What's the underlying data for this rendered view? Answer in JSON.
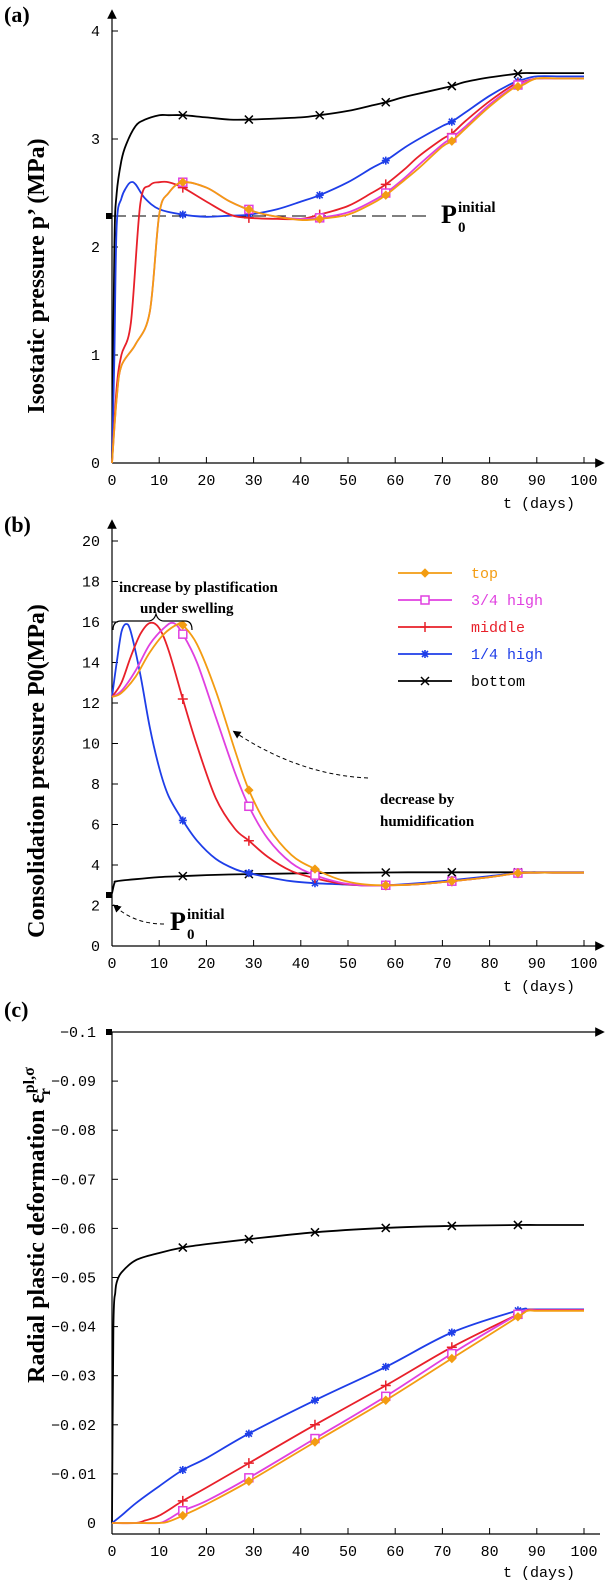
{
  "colors": {
    "top": "#f39c12",
    "three_quarter": "#e040e0",
    "middle": "#e8202a",
    "quarter": "#1e3ee8",
    "bottom": "#000000"
  },
  "chart_data": [
    {
      "panel": "(a)",
      "type": "line",
      "ylabel": "Isostatic pressure p’ (MPa)",
      "xlabel": "t (days)",
      "xlim": [
        0,
        100
      ],
      "ylim": [
        0,
        4
      ],
      "xticks": [
        "0",
        "10",
        "20",
        "30",
        "40",
        "50",
        "60",
        "70",
        "80",
        "90",
        "100"
      ],
      "yticks": [
        "0",
        "1",
        "2",
        "3",
        "4"
      ],
      "reference": {
        "label_main": "P",
        "label_sub": "0",
        "label_sup": "initial",
        "value": 2.3
      },
      "series": [
        {
          "key": "top",
          "x": [
            0,
            1,
            2,
            5,
            8,
            10,
            12,
            15,
            20,
            25,
            30,
            35,
            40,
            44,
            50,
            55,
            58,
            62,
            65,
            70,
            72,
            75,
            80,
            85,
            87,
            90,
            95,
            100
          ],
          "y": [
            0,
            0.6,
            0.9,
            1.1,
            1.4,
            2.3,
            2.5,
            2.6,
            2.55,
            2.42,
            2.33,
            2.28,
            2.25,
            2.26,
            2.3,
            2.4,
            2.48,
            2.62,
            2.73,
            2.93,
            2.98,
            3.1,
            3.3,
            3.47,
            3.5,
            3.56,
            3.56,
            3.56
          ]
        },
        {
          "key": "three_quarter",
          "x": [
            0,
            1,
            2,
            5,
            8,
            10,
            12,
            15,
            20,
            25,
            30,
            35,
            40,
            44,
            50,
            55,
            58,
            62,
            65,
            70,
            72,
            75,
            80,
            85,
            87,
            90,
            95,
            100
          ],
          "y": [
            0,
            0.6,
            0.9,
            1.1,
            1.4,
            2.3,
            2.5,
            2.6,
            2.55,
            2.42,
            2.33,
            2.28,
            2.26,
            2.27,
            2.32,
            2.42,
            2.5,
            2.64,
            2.76,
            2.95,
            3.01,
            3.12,
            3.32,
            3.48,
            3.52,
            3.56,
            3.56,
            3.56
          ]
        },
        {
          "key": "middle",
          "x": [
            0,
            1,
            2,
            4,
            6,
            8,
            10,
            12,
            15,
            20,
            25,
            29,
            35,
            40,
            44,
            50,
            55,
            58,
            62,
            65,
            70,
            72,
            75,
            80,
            85,
            87,
            90,
            95,
            100
          ],
          "y": [
            0,
            0.7,
            1.0,
            1.3,
            2.4,
            2.57,
            2.6,
            2.6,
            2.55,
            2.42,
            2.3,
            2.27,
            2.26,
            2.26,
            2.3,
            2.38,
            2.5,
            2.58,
            2.72,
            2.84,
            3.0,
            3.05,
            3.17,
            3.35,
            3.5,
            3.53,
            3.56,
            3.56,
            3.56
          ]
        },
        {
          "key": "quarter",
          "x": [
            0,
            0.5,
            1,
            2,
            3,
            4,
            5,
            7,
            10,
            15,
            20,
            25,
            29,
            35,
            40,
            44,
            50,
            55,
            58,
            62,
            65,
            70,
            72,
            75,
            80,
            85,
            87,
            90,
            95,
            100
          ],
          "y": [
            0,
            1.0,
            2.2,
            2.45,
            2.55,
            2.6,
            2.58,
            2.45,
            2.35,
            2.3,
            2.28,
            2.29,
            2.3,
            2.35,
            2.42,
            2.48,
            2.6,
            2.73,
            2.8,
            2.92,
            3.0,
            3.12,
            3.16,
            3.25,
            3.4,
            3.52,
            3.55,
            3.58,
            3.58,
            3.58
          ]
        },
        {
          "key": "bottom",
          "x": [
            0,
            0.5,
            1,
            2,
            3,
            5,
            7,
            10,
            12,
            15,
            20,
            25,
            29,
            35,
            40,
            44,
            50,
            55,
            58,
            62,
            65,
            70,
            72,
            75,
            80,
            85,
            87,
            90,
            95,
            100
          ],
          "y": [
            0,
            2.0,
            2.5,
            2.8,
            2.95,
            3.12,
            3.18,
            3.22,
            3.22,
            3.22,
            3.2,
            3.18,
            3.18,
            3.19,
            3.2,
            3.22,
            3.26,
            3.31,
            3.34,
            3.39,
            3.42,
            3.47,
            3.49,
            3.53,
            3.57,
            3.6,
            3.61,
            3.61,
            3.61,
            3.61
          ]
        }
      ]
    },
    {
      "panel": "(b)",
      "type": "line",
      "ylabel": "Consolidation pressure P0(MPa)",
      "xlabel": "t (days)",
      "xlim": [
        0,
        100
      ],
      "ylim": [
        0,
        20
      ],
      "xticks": [
        "0",
        "10",
        "20",
        "30",
        "40",
        "50",
        "60",
        "70",
        "80",
        "90",
        "100"
      ],
      "yticks": [
        "0",
        "2",
        "4",
        "6",
        "8",
        "10",
        "12",
        "14",
        "16",
        "18",
        "20"
      ],
      "annotations": {
        "increase_line1": "increase by plastification",
        "increase_line2": "under swelling",
        "decrease_line1": "decrease by",
        "decrease_line2": "humidification",
        "p0_main": "P",
        "p0_sub": "0",
        "p0_sup": "initial"
      },
      "legend": [
        {
          "key": "top",
          "label": "top"
        },
        {
          "key": "three_quarter",
          "label": "3/4 high"
        },
        {
          "key": "middle",
          "label": "middle"
        },
        {
          "key": "quarter",
          "label": "1/4 high"
        },
        {
          "key": "bottom",
          "label": "bottom"
        }
      ],
      "series": [
        {
          "key": "top",
          "x": [
            0,
            2,
            5,
            8,
            11,
            14,
            15,
            18,
            22,
            26,
            29,
            33,
            38,
            43,
            48,
            53,
            58,
            65,
            72,
            80,
            86,
            90,
            95,
            100
          ],
          "y": [
            12.3,
            12.5,
            13.3,
            14.5,
            15.4,
            15.9,
            15.85,
            14.9,
            12.6,
            9.7,
            7.7,
            5.9,
            4.5,
            3.8,
            3.3,
            3.05,
            3.0,
            3.05,
            3.2,
            3.4,
            3.6,
            3.62,
            3.62,
            3.62
          ]
        },
        {
          "key": "three_quarter",
          "x": [
            0,
            2,
            5,
            8,
            11,
            13,
            15,
            18,
            22,
            26,
            29,
            33,
            38,
            43,
            48,
            53,
            58,
            65,
            72,
            80,
            86,
            90,
            95,
            100
          ],
          "y": [
            12.3,
            12.6,
            13.6,
            14.9,
            15.7,
            15.95,
            15.4,
            14.0,
            11.3,
            8.6,
            6.9,
            5.3,
            4.1,
            3.5,
            3.15,
            3.0,
            3.0,
            3.05,
            3.2,
            3.4,
            3.6,
            3.62,
            3.62,
            3.62
          ]
        },
        {
          "key": "middle",
          "x": [
            0,
            2,
            4,
            6,
            8,
            10,
            12,
            15,
            18,
            22,
            26,
            29,
            33,
            38,
            43,
            48,
            53,
            58,
            65,
            72,
            80,
            86,
            90,
            95,
            100
          ],
          "y": [
            12.3,
            13.0,
            14.3,
            15.4,
            15.95,
            15.7,
            14.6,
            12.2,
            9.9,
            7.3,
            5.8,
            5.2,
            4.4,
            3.7,
            3.35,
            3.1,
            3.0,
            3.0,
            3.05,
            3.2,
            3.4,
            3.6,
            3.62,
            3.62,
            3.62
          ]
        },
        {
          "key": "quarter",
          "x": [
            0,
            1,
            2,
            3,
            4,
            6,
            8,
            10,
            12,
            15,
            18,
            22,
            26,
            29,
            33,
            38,
            43,
            48,
            53,
            58,
            65,
            72,
            80,
            86,
            90,
            95,
            100
          ],
          "y": [
            12.3,
            14.0,
            15.5,
            15.9,
            15.5,
            13.4,
            10.8,
            8.8,
            7.4,
            6.2,
            5.2,
            4.3,
            3.8,
            3.6,
            3.4,
            3.2,
            3.1,
            3.05,
            3.0,
            3.0,
            3.1,
            3.25,
            3.45,
            3.6,
            3.62,
            3.62,
            3.62
          ]
        },
        {
          "key": "bottom",
          "x": [
            0,
            0.5,
            1,
            5,
            10,
            15,
            20,
            29,
            35,
            43,
            50,
            58,
            65,
            72,
            80,
            86,
            90,
            95,
            100
          ],
          "y": [
            2.6,
            3.1,
            3.2,
            3.3,
            3.4,
            3.45,
            3.5,
            3.55,
            3.57,
            3.6,
            3.62,
            3.63,
            3.64,
            3.64,
            3.64,
            3.64,
            3.64,
            3.64,
            3.64
          ]
        }
      ]
    },
    {
      "panel": "(c)",
      "type": "line",
      "ylabel": "Radial plastic deformation ε",
      "ylabel_sup": "pl,σ",
      "ylabel_sub": "r",
      "xlabel": "t (days)",
      "xlim": [
        0,
        100
      ],
      "ylim": [
        -0.1,
        0
      ],
      "xticks": [
        "0",
        "10",
        "20",
        "30",
        "40",
        "50",
        "60",
        "70",
        "80",
        "90",
        "100"
      ],
      "yticks": [
        "0",
        "−0.01",
        "−0.02",
        "−0.03",
        "−0.04",
        "−0.05",
        "−0.06",
        "−0.07",
        "−0.08",
        "−0.09",
        "−0.1"
      ],
      "series": [
        {
          "key": "top",
          "x": [
            0,
            5,
            10,
            12,
            15,
            20,
            29,
            43,
            58,
            72,
            86,
            88,
            90,
            95,
            100
          ],
          "y": [
            0,
            0,
            0,
            -0.0003,
            -0.0015,
            -0.0038,
            -0.0085,
            -0.0165,
            -0.025,
            -0.0335,
            -0.042,
            -0.0432,
            -0.0432,
            -0.0432,
            -0.0432
          ]
        },
        {
          "key": "three_quarter",
          "x": [
            0,
            5,
            10,
            12,
            15,
            20,
            29,
            43,
            58,
            72,
            86,
            88,
            90,
            95,
            100
          ],
          "y": [
            0,
            0,
            0,
            -0.0008,
            -0.0025,
            -0.0045,
            -0.0092,
            -0.0172,
            -0.0258,
            -0.0345,
            -0.0425,
            -0.0433,
            -0.0433,
            -0.0433,
            -0.0433
          ]
        },
        {
          "key": "middle",
          "x": [
            0,
            5,
            7,
            10,
            15,
            20,
            29,
            43,
            58,
            72,
            86,
            88,
            90,
            95,
            100
          ],
          "y": [
            0,
            0,
            -0.0005,
            -0.0015,
            -0.0045,
            -0.0072,
            -0.0122,
            -0.02,
            -0.028,
            -0.0358,
            -0.0425,
            -0.0434,
            -0.0434,
            -0.0434,
            -0.0434
          ]
        },
        {
          "key": "quarter",
          "x": [
            0,
            2,
            5,
            10,
            15,
            20,
            29,
            43,
            58,
            72,
            86,
            88,
            90,
            95,
            100
          ],
          "y": [
            0,
            -0.0015,
            -0.004,
            -0.0075,
            -0.0108,
            -0.0132,
            -0.0182,
            -0.025,
            -0.0318,
            -0.0388,
            -0.0433,
            -0.0435,
            -0.0435,
            -0.0435,
            -0.0435
          ]
        },
        {
          "key": "bottom",
          "x": [
            0,
            0.3,
            0.7,
            1,
            2,
            5,
            10,
            15,
            20,
            29,
            43,
            58,
            72,
            86,
            90,
            100
          ],
          "y": [
            0,
            -0.04,
            -0.047,
            -0.049,
            -0.051,
            -0.0535,
            -0.055,
            -0.0561,
            -0.0568,
            -0.0578,
            -0.0592,
            -0.0601,
            -0.0605,
            -0.0607,
            -0.0607,
            -0.0607
          ]
        }
      ]
    }
  ]
}
